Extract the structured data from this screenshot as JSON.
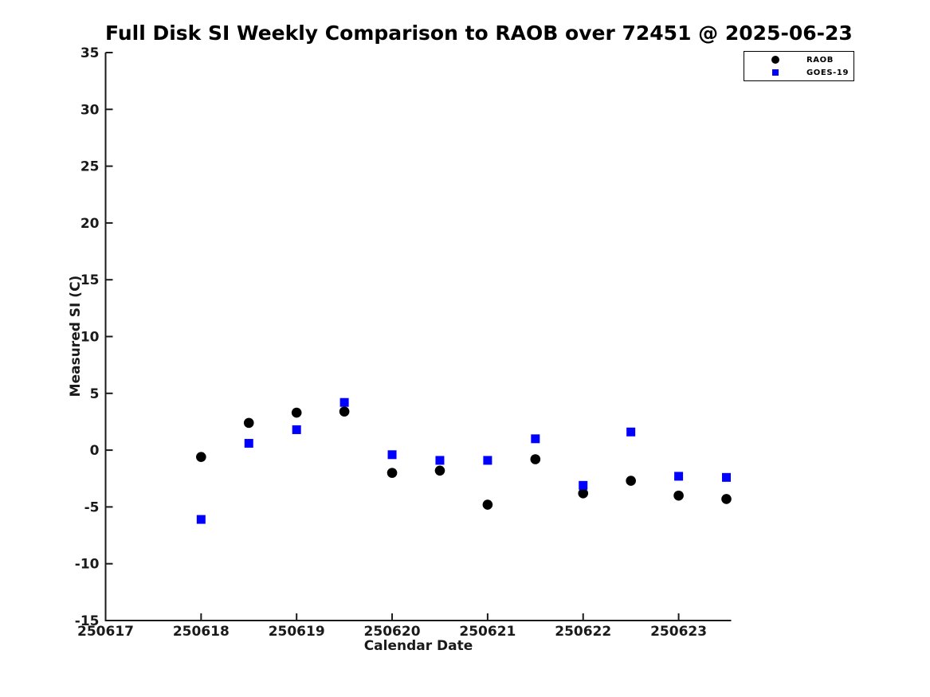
{
  "page": {
    "background": "#ffffff"
  },
  "chart_data": {
    "type": "scatter",
    "title": "Full Disk SI Weekly Comparison to RAOB over 72451 @ 2025-06-23",
    "xlabel": "Calendar Date",
    "ylabel": "Measured SI (C)",
    "grid": false,
    "legend_position": "top-right-outside-plot",
    "axis_color": "#1a1a1a",
    "xlim": [
      250617.0,
      250623.55
    ],
    "ylim": [
      -15,
      35
    ],
    "x_tick_labels": [
      "250617",
      "250618",
      "250619",
      "250620",
      "250621",
      "250622",
      "250623"
    ],
    "x_tick_values": [
      250617,
      250618,
      250619,
      250620,
      250621,
      250622,
      250623
    ],
    "y_ticks": [
      -15,
      -10,
      -5,
      0,
      5,
      10,
      15,
      20,
      25,
      30,
      35
    ],
    "x": [
      250618.0,
      250618.5,
      250619.0,
      250619.5,
      250620.0,
      250620.5,
      250621.0,
      250621.5,
      250622.0,
      250622.5,
      250623.0,
      250623.5
    ],
    "series": [
      {
        "name": "RAOB",
        "marker": "circle",
        "color": "#000000",
        "values": [
          -0.6,
          2.4,
          3.3,
          3.4,
          -2.0,
          -1.8,
          -4.8,
          -0.8,
          -3.8,
          -2.7,
          -4.0,
          -4.3
        ]
      },
      {
        "name": "GOES-19",
        "marker": "square",
        "color": "#0000ff",
        "values": [
          -6.1,
          0.6,
          1.8,
          4.2,
          -0.4,
          -0.9,
          -0.9,
          1.0,
          -3.1,
          1.6,
          -2.3,
          -2.4
        ]
      }
    ]
  }
}
